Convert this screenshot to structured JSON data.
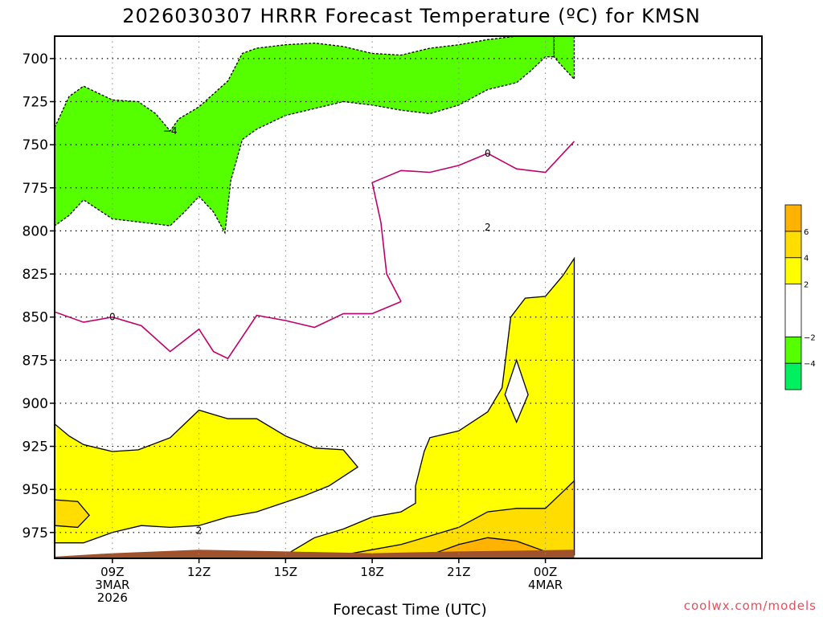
{
  "header": {
    "title": "2026030307 HRRR Forecast Temperature (ºC) for KMSN"
  },
  "footer": {
    "watermark": "coolwx.com/models"
  },
  "colors": {
    "ground": "#a0522d",
    "zero_contour": "#c0006a",
    "fill_green_dark": "#00f060",
    "fill_green": "#55ff00",
    "fill_white": "#ffffff",
    "fill_yellow": "#ffff00",
    "fill_gold": "#ffdd00",
    "fill_orange": "#ffb300"
  },
  "chart_data": {
    "type": "heatmap",
    "subtype": "time-height contour",
    "title": "2026030307 HRRR Forecast Temperature (ºC) for KMSN",
    "xlabel": "Forecast Time (UTC)",
    "ylabel": "",
    "x_unit": "hours from 2026-03-03 07Z",
    "xlim": [
      7,
      31.5
    ],
    "ylim": [
      990,
      687
    ],
    "y_axis": "pressure (hPa), increasing downward",
    "grid": true,
    "y_ticks": [
      700,
      725,
      750,
      775,
      800,
      825,
      850,
      875,
      900,
      925,
      950,
      975
    ],
    "x_ticks": [
      {
        "x": 9,
        "lines": [
          "09Z",
          "3MAR",
          "2026"
        ]
      },
      {
        "x": 12,
        "lines": [
          "12Z"
        ]
      },
      {
        "x": 15,
        "lines": [
          "15Z"
        ]
      },
      {
        "x": 18,
        "lines": [
          "18Z"
        ]
      },
      {
        "x": 21,
        "lines": [
          "21Z"
        ]
      },
      {
        "x": 24,
        "lines": [
          "00Z",
          "4MAR"
        ]
      }
    ],
    "colorbar": {
      "placement": "right",
      "bands": [
        {
          "from": -6,
          "to": -4,
          "color": "#00f060"
        },
        {
          "from": -4,
          "to": -2,
          "color": "#55ff00"
        },
        {
          "from": -2,
          "to": 2,
          "color": "#ffffff"
        },
        {
          "from": 2,
          "to": 4,
          "color": "#ffff00"
        },
        {
          "from": 4,
          "to": 6,
          "color": "#ffdd00"
        },
        {
          "from": 6,
          "to": 8,
          "color": "#ffb300"
        }
      ],
      "labels": [
        "6",
        "4",
        "2",
        "−2",
        "−4"
      ]
    },
    "contour_labels": [
      {
        "text": "−4",
        "x": 11.0,
        "p": 742
      },
      {
        "text": "0",
        "x": 9.0,
        "p": 850
      },
      {
        "text": "0",
        "x": 22.0,
        "p": 755
      },
      {
        "text": "2",
        "x": 22.0,
        "p": 798
      },
      {
        "text": "2",
        "x": 12.0,
        "p": 974
      }
    ],
    "regions": [
      {
        "name": "green-upper",
        "color": "#55ff00",
        "closed": true,
        "points": [
          [
            7,
            740
          ],
          [
            7.5,
            722
          ],
          [
            8,
            716
          ],
          [
            9,
            724
          ],
          [
            9.9,
            725
          ],
          [
            10.5,
            732
          ],
          [
            11,
            742
          ],
          [
            11.3,
            735
          ],
          [
            12,
            728
          ],
          [
            13,
            713
          ],
          [
            13.5,
            697
          ],
          [
            14,
            694
          ],
          [
            15,
            692
          ],
          [
            16,
            691
          ],
          [
            17,
            693
          ],
          [
            18,
            697
          ],
          [
            19,
            698
          ],
          [
            20,
            694
          ],
          [
            21,
            692
          ],
          [
            22,
            689
          ],
          [
            23,
            687
          ],
          [
            24.3,
            687
          ],
          [
            24.3,
            699
          ],
          [
            24,
            699
          ],
          [
            23.5,
            707
          ],
          [
            23,
            714
          ],
          [
            22,
            718
          ],
          [
            21,
            727
          ],
          [
            20,
            732
          ],
          [
            19,
            730
          ],
          [
            18,
            727
          ],
          [
            17,
            725
          ],
          [
            16,
            729
          ],
          [
            15,
            733
          ],
          [
            14,
            741
          ],
          [
            13.5,
            747
          ],
          [
            13.1,
            771
          ],
          [
            12.9,
            801
          ],
          [
            12.5,
            789
          ],
          [
            12,
            780
          ],
          [
            11.5,
            789
          ],
          [
            11,
            797
          ],
          [
            10,
            795
          ],
          [
            9,
            793
          ],
          [
            8,
            782
          ],
          [
            7.5,
            791
          ],
          [
            7,
            797
          ]
        ]
      },
      {
        "name": "green-upper-right",
        "color": "#55ff00",
        "closed": true,
        "points": [
          [
            24.3,
            687
          ],
          [
            25,
            687
          ],
          [
            25,
            712
          ],
          [
            24.5,
            703
          ],
          [
            24.3,
            699
          ]
        ]
      },
      {
        "name": "yellow-low-left",
        "color": "#ffff00",
        "closed": true,
        "points": [
          [
            7,
            912
          ],
          [
            7.5,
            919
          ],
          [
            8,
            924
          ],
          [
            9,
            928
          ],
          [
            9.9,
            927
          ],
          [
            11,
            920
          ],
          [
            12,
            904
          ],
          [
            13,
            909
          ],
          [
            14,
            909
          ],
          [
            15,
            919
          ],
          [
            16,
            926
          ],
          [
            17,
            927
          ],
          [
            17.5,
            937
          ],
          [
            16.5,
            948
          ],
          [
            15.6,
            954
          ],
          [
            14,
            963
          ],
          [
            13,
            966
          ],
          [
            12,
            971
          ],
          [
            11,
            972
          ],
          [
            10,
            971
          ],
          [
            9,
            975
          ],
          [
            8,
            981
          ],
          [
            7,
            981
          ]
        ]
      },
      {
        "name": "gold-low-left",
        "color": "#ffdd00",
        "closed": true,
        "points": [
          [
            7,
            956
          ],
          [
            7.8,
            957
          ],
          [
            8.2,
            965
          ],
          [
            7.8,
            972
          ],
          [
            7,
            971
          ]
        ]
      },
      {
        "name": "yellow-right",
        "color": "#ffff00",
        "closed": true,
        "points": [
          [
            15,
            988
          ],
          [
            16,
            978
          ],
          [
            17,
            973
          ],
          [
            18,
            966
          ],
          [
            19,
            963
          ],
          [
            19.5,
            958
          ],
          [
            19.5,
            948
          ],
          [
            19.8,
            928
          ],
          [
            20,
            920
          ],
          [
            21,
            916
          ],
          [
            22,
            905
          ],
          [
            22.5,
            891
          ],
          [
            22.8,
            850
          ],
          [
            23.3,
            839
          ],
          [
            24,
            838
          ],
          [
            24.6,
            826
          ],
          [
            25,
            816
          ],
          [
            25,
            988
          ]
        ]
      },
      {
        "name": "white-hole",
        "color": "#ffffff",
        "closed": true,
        "points": [
          [
            23,
            875
          ],
          [
            23.4,
            895
          ],
          [
            23,
            911
          ],
          [
            22.6,
            895
          ]
        ]
      },
      {
        "name": "gold-low-right",
        "color": "#ffdd00",
        "closed": true,
        "points": [
          [
            17,
            988
          ],
          [
            19,
            982
          ],
          [
            21,
            972
          ],
          [
            22,
            963
          ],
          [
            23,
            961
          ],
          [
            24,
            961
          ],
          [
            25,
            945
          ],
          [
            25,
            988
          ]
        ]
      },
      {
        "name": "orange-low-right",
        "color": "#ffb300",
        "closed": true,
        "points": [
          [
            20,
            988
          ],
          [
            21,
            982
          ],
          [
            22,
            978
          ],
          [
            23,
            980
          ],
          [
            24,
            986
          ],
          [
            24,
            988
          ]
        ]
      },
      {
        "name": "ground",
        "color": "#a0522d",
        "closed": true,
        "points": [
          [
            7,
            989
          ],
          [
            9,
            987
          ],
          [
            12,
            985
          ],
          [
            15,
            986
          ],
          [
            18,
            987
          ],
          [
            21,
            986
          ],
          [
            25,
            985
          ],
          [
            25,
            990
          ],
          [
            7,
            990
          ]
        ]
      }
    ],
    "contour_lines": [
      {
        "value": 0,
        "color": "#c0006a",
        "points": [
          [
            7,
            847
          ],
          [
            8,
            853
          ],
          [
            9,
            850
          ],
          [
            10,
            855
          ],
          [
            11,
            870
          ],
          [
            12,
            857
          ],
          [
            12.5,
            870
          ],
          [
            13,
            874
          ],
          [
            14,
            849
          ],
          [
            15,
            852
          ],
          [
            16,
            856
          ],
          [
            17,
            848
          ],
          [
            18,
            848
          ],
          [
            19,
            841
          ]
        ]
      },
      {
        "value": 0,
        "color": "#c0006a",
        "points": [
          [
            19,
            841
          ],
          [
            18.5,
            825
          ],
          [
            18.3,
            795
          ],
          [
            18,
            772
          ],
          [
            19,
            765
          ],
          [
            20,
            766
          ],
          [
            21,
            762
          ],
          [
            22,
            755
          ],
          [
            23,
            764
          ],
          [
            24,
            766
          ],
          [
            25,
            748
          ]
        ]
      }
    ]
  }
}
